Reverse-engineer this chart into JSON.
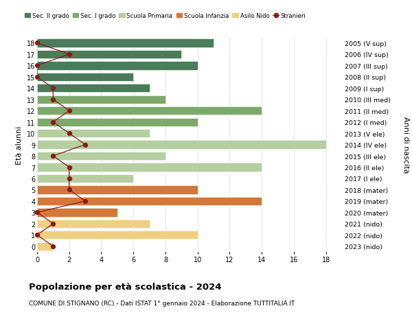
{
  "ages": [
    18,
    17,
    16,
    15,
    14,
    13,
    12,
    11,
    10,
    9,
    8,
    7,
    6,
    5,
    4,
    3,
    2,
    1,
    0
  ],
  "years": [
    "2005 (V sup)",
    "2006 (IV sup)",
    "2007 (III sup)",
    "2008 (II sup)",
    "2009 (I sup)",
    "2010 (III med)",
    "2011 (II med)",
    "2012 (I med)",
    "2013 (V ele)",
    "2014 (IV ele)",
    "2015 (III ele)",
    "2016 (II ele)",
    "2017 (I ele)",
    "2018 (mater)",
    "2019 (mater)",
    "2020 (mater)",
    "2021 (nido)",
    "2022 (nido)",
    "2023 (nido)"
  ],
  "bar_values": [
    11,
    9,
    10,
    6,
    7,
    8,
    14,
    10,
    7,
    18,
    8,
    14,
    6,
    10,
    14,
    5,
    7,
    10,
    1
  ],
  "stranieri": [
    0,
    2,
    0,
    0,
    1,
    1,
    2,
    1,
    2,
    3,
    1,
    2,
    2,
    2,
    3,
    0,
    1,
    0,
    1
  ],
  "colors": {
    "sec2": "#4a7c59",
    "sec1": "#7daa6b",
    "primaria": "#b5cfa0",
    "infanzia": "#d4783a",
    "nido": "#f0d080",
    "stranieri_line": "#8b1a1a",
    "stranieri_dot": "#8b1a1a"
  },
  "school_types": {
    "sec2": [
      18,
      17,
      16,
      15,
      14
    ],
    "sec1": [
      13,
      12,
      11
    ],
    "primaria": [
      10,
      9,
      8,
      7,
      6
    ],
    "infanzia": [
      5,
      4,
      3
    ],
    "nido": [
      2,
      1,
      0
    ]
  },
  "legend": [
    "Sec. II grado",
    "Sec. I grado",
    "Scuola Primaria",
    "Scuola Infanzia",
    "Asilo Nido",
    "Stranieri"
  ],
  "ylabel_left": "Età alunni",
  "ylabel_right": "Anni di nascita",
  "title": "Popolazione per età scolastica - 2024",
  "subtitle": "COMUNE DI STIGNANO (RC) - Dati ISTAT 1° gennaio 2024 - Elaborazione TUTTITALIA.IT",
  "xlim": [
    0,
    19
  ],
  "background": "#ffffff"
}
